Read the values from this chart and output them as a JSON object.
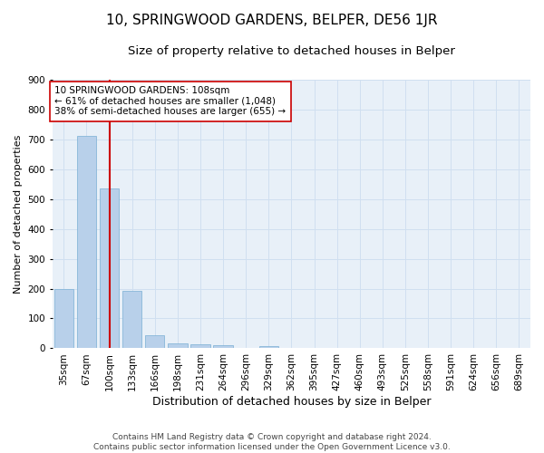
{
  "title": "10, SPRINGWOOD GARDENS, BELPER, DE56 1JR",
  "subtitle": "Size of property relative to detached houses in Belper",
  "xlabel": "Distribution of detached houses by size in Belper",
  "ylabel": "Number of detached properties",
  "categories": [
    "35sqm",
    "67sqm",
    "100sqm",
    "133sqm",
    "166sqm",
    "198sqm",
    "231sqm",
    "264sqm",
    "296sqm",
    "329sqm",
    "362sqm",
    "395sqm",
    "427sqm",
    "460sqm",
    "493sqm",
    "525sqm",
    "558sqm",
    "591sqm",
    "624sqm",
    "656sqm",
    "689sqm"
  ],
  "values": [
    200,
    710,
    535,
    193,
    45,
    18,
    13,
    10,
    0,
    8,
    0,
    0,
    0,
    0,
    0,
    0,
    0,
    0,
    0,
    0,
    0
  ],
  "bar_color": "#b8d0ea",
  "bar_edge_color": "#7aafd4",
  "grid_color": "#d0dff0",
  "background_color": "#e8f0f8",
  "vline_x": 2.0,
  "vline_color": "#cc0000",
  "annotation_text": "10 SPRINGWOOD GARDENS: 108sqm\n← 61% of detached houses are smaller (1,048)\n38% of semi-detached houses are larger (655) →",
  "annotation_box_facecolor": "#ffffff",
  "annotation_box_edgecolor": "#cc0000",
  "ylim": [
    0,
    900
  ],
  "yticks": [
    0,
    100,
    200,
    300,
    400,
    500,
    600,
    700,
    800,
    900
  ],
  "footer": "Contains HM Land Registry data © Crown copyright and database right 2024.\nContains public sector information licensed under the Open Government Licence v3.0.",
  "title_fontsize": 11,
  "subtitle_fontsize": 9.5,
  "xlabel_fontsize": 9,
  "ylabel_fontsize": 8,
  "tick_fontsize": 7.5,
  "annotation_fontsize": 7.5,
  "footer_fontsize": 6.5
}
